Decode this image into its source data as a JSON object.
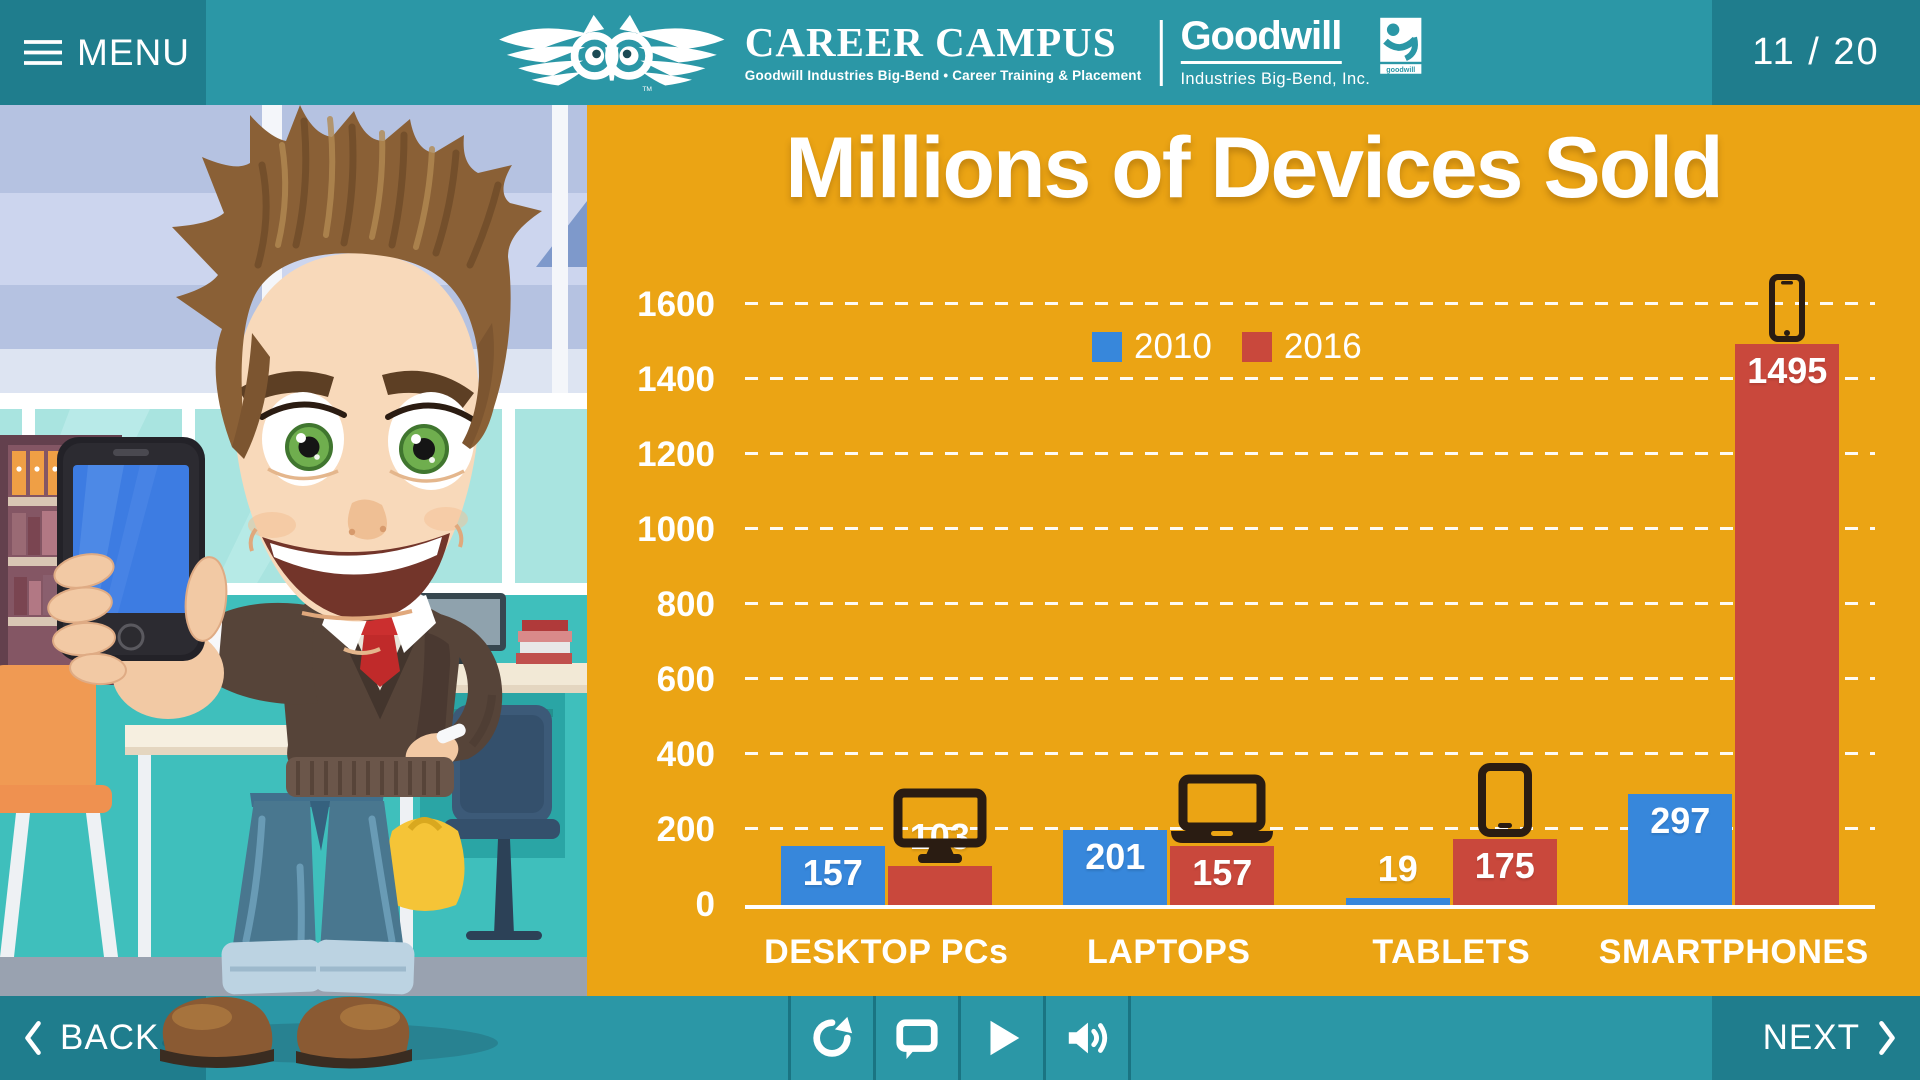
{
  "header": {
    "menu_label": "MENU",
    "page_counter": "11 / 20",
    "career_campus": {
      "title": "CAREER CAMPUS",
      "subtitle": "Goodwill Industries Big-Bend • Career Training & Placement",
      "trademark": "TM"
    },
    "goodwill": {
      "name": "Goodwill",
      "subtitle": "Industries Big-Bend, Inc.",
      "mark_text": "goodwill"
    }
  },
  "chart_data": {
    "type": "bar",
    "title": "Millions of Devices Sold",
    "categories": [
      "DESKTOP PCs",
      "LAPTOPS",
      "TABLETS",
      "SMARTPHONES"
    ],
    "series": [
      {
        "name": "2010",
        "color": "#3787DB",
        "values": [
          157,
          201,
          19,
          297
        ]
      },
      {
        "name": "2016",
        "color": "#C9483C",
        "values": [
          103,
          157,
          175,
          1495
        ]
      }
    ],
    "xlabel": "",
    "ylabel": "",
    "ylim": [
      0,
      1600
    ],
    "ytick_step": 200,
    "grid": "horizontal-dashed-white",
    "legend_position": "top-center",
    "value_labels": true,
    "category_icons": [
      "desktop-icon",
      "laptop-icon",
      "tablet-icon",
      "smartphone-icon"
    ]
  },
  "footer": {
    "back_label": "BACK",
    "next_label": "NEXT",
    "controls": [
      {
        "name": "replay-button",
        "icon": "replay-icon"
      },
      {
        "name": "captions-button",
        "icon": "speech-bubble-icon"
      },
      {
        "name": "play-button",
        "icon": "play-icon"
      },
      {
        "name": "volume-button",
        "icon": "volume-icon"
      }
    ]
  },
  "colors": {
    "top_bar": "#2B97A6",
    "dark_box": "#1F7D8D",
    "panel_orange": "#EBA414",
    "series_2010": "#3787DB",
    "series_2016": "#C9483C",
    "device_icon": "#2A1C12",
    "text": "#FFFFFF"
  }
}
